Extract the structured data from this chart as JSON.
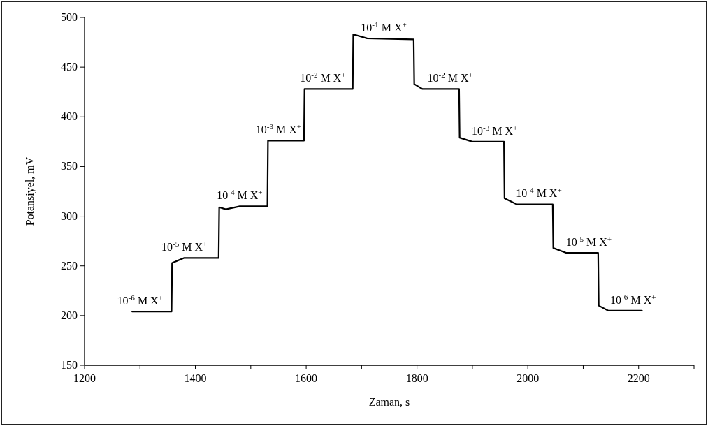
{
  "chart_data": {
    "type": "line",
    "xlabel": "Zaman, s",
    "ylabel": "Potansiyel, mV",
    "x": [
      1286,
      1357,
      1358,
      1380,
      1442,
      1443,
      1455,
      1480,
      1530,
      1531,
      1596,
      1597,
      1684,
      1685,
      1710,
      1794,
      1795,
      1810,
      1876,
      1877,
      1900,
      1957,
      1958,
      1980,
      2045,
      2046,
      2070,
      2127,
      2128,
      2145,
      2206
    ],
    "series": [
      {
        "color": "#000000",
        "values": [
          204,
          204,
          253,
          258,
          258,
          309,
          307,
          310,
          310,
          376,
          376,
          428,
          428,
          483,
          479,
          478,
          433,
          428,
          428,
          379,
          375,
          375,
          318,
          312,
          312,
          268,
          263,
          263,
          210,
          205,
          205
        ]
      }
    ],
    "xlim": [
      1200,
      2300
    ],
    "xticks": [
      1200,
      {
        "value": 1300,
        "label": null
      },
      1400,
      {
        "value": 1500,
        "label": null
      },
      1600,
      {
        "value": 1700,
        "label": null
      },
      1800,
      {
        "value": 1900,
        "label": null
      },
      2000,
      {
        "value": 2100,
        "label": null
      },
      2200,
      {
        "value": 2300,
        "label": null
      }
    ],
    "ylim": [
      150,
      500
    ],
    "yticks": [
      150,
      200,
      250,
      300,
      350,
      400,
      450,
      500
    ],
    "grid": false,
    "marker": "none",
    "line_style": "solid",
    "annotations": [
      {
        "text": "10$^{-6}$ M X$^{+}$",
        "x": 1300,
        "y": 204
      },
      {
        "text": "10$^{-5}$ M X$^{+}$",
        "x": 1380,
        "y": 258
      },
      {
        "text": "10$^{-4}$ M X$^{+}$",
        "x": 1480,
        "y": 310
      },
      {
        "text": "10$^{-3}$ M X$^{+}$",
        "x": 1550,
        "y": 376
      },
      {
        "text": "10$^{-2}$ M X$^{+}$",
        "x": 1630,
        "y": 428
      },
      {
        "text": "10$^{-1}$ M X$^{+}$",
        "x": 1740,
        "y": 479
      },
      {
        "text": "10$^{-2}$ M X$^{+}$",
        "x": 1860,
        "y": 428
      },
      {
        "text": "10$^{-3}$ M X$^{+}$",
        "x": 1940,
        "y": 375
      },
      {
        "text": "10$^{-4}$ M X$^{+}$",
        "x": 2020,
        "y": 312
      },
      {
        "text": "10$^{-5}$ M X$^{+}$",
        "x": 2110,
        "y": 263
      },
      {
        "text": "10$^{-6}$ M X$^{+}$",
        "x": 2190,
        "y": 205
      }
    ]
  }
}
